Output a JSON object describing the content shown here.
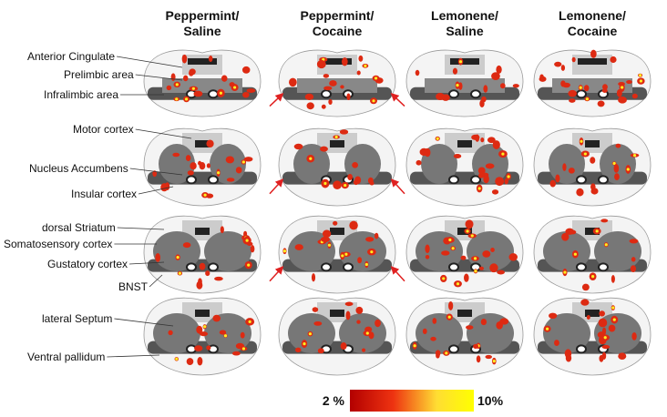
{
  "columns": [
    {
      "lines": [
        "Peppermint/",
        "Saline"
      ]
    },
    {
      "lines": [
        "Peppermint/",
        "Cocaine"
      ]
    },
    {
      "lines": [
        "Lemonene/",
        "Saline"
      ]
    },
    {
      "lines": [
        "Lemonene/",
        "Cocaine"
      ]
    }
  ],
  "regions": [
    "Anterior Cingulate",
    "Prelimbic area",
    "Infralimbic area",
    "Motor cortex",
    "Nucleus Accumbens",
    "Insular cortex",
    "dorsal Striatum",
    "Somatosensory cortex",
    "Gustatory cortex",
    "BNST",
    "lateral Septum",
    "Ventral pallidum"
  ],
  "colorbar": {
    "min_label": "2 %",
    "max_label": "10%"
  }
}
